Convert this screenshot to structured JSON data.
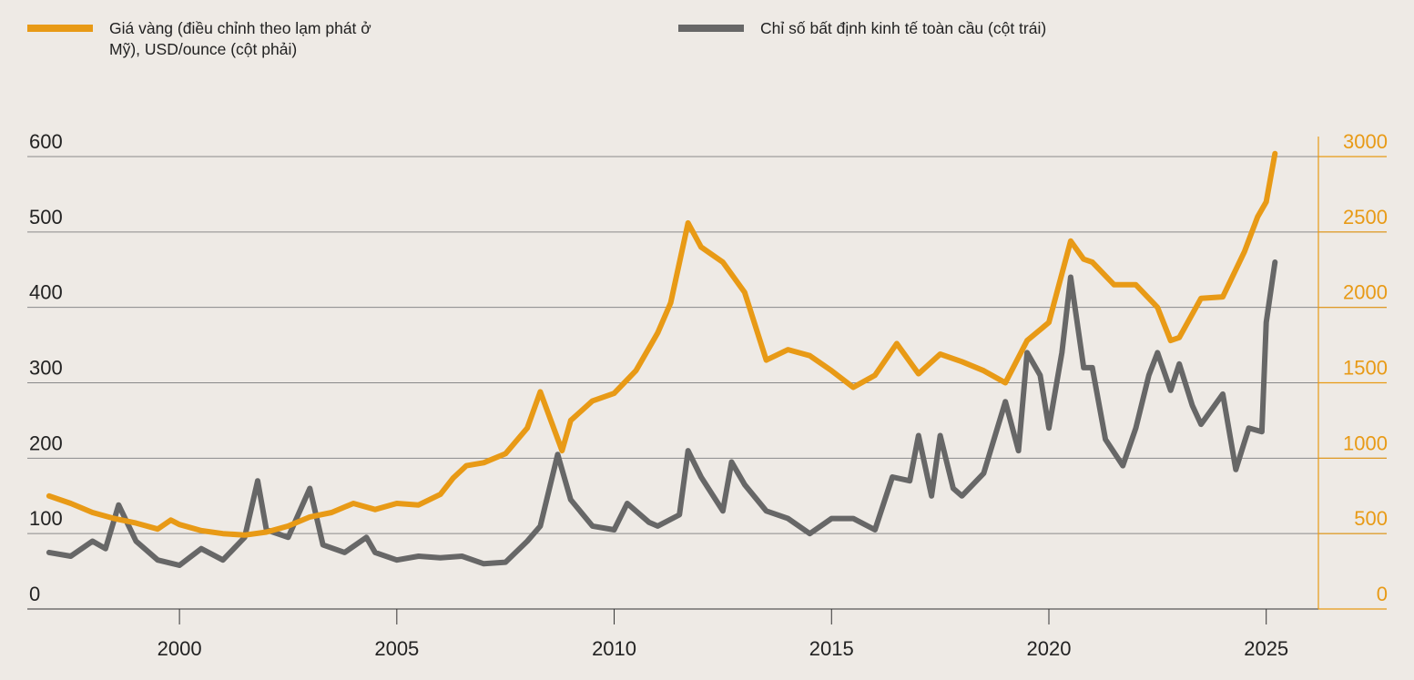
{
  "chart_data": {
    "type": "line",
    "title": "",
    "xlabel": "",
    "ylabel_left": "",
    "ylabel_right": "",
    "xlim": [
      1996.5,
      2026.2
    ],
    "x_ticks": [
      2000,
      2005,
      2010,
      2015,
      2020,
      2025
    ],
    "ylim_left": [
      0,
      600
    ],
    "yticks_left": [
      0,
      100,
      200,
      300,
      400,
      500,
      600
    ],
    "ylim_right": [
      0,
      3000
    ],
    "yticks_right": [
      0,
      500,
      1000,
      1500,
      2000,
      2500,
      3000
    ],
    "grid": "horizontal",
    "legend_position": "top",
    "series": [
      {
        "name": "Giá vàng (điều chỉnh theo lạm phát ở Mỹ), USD/ounce (cột phải)",
        "axis": "right",
        "color": "#e89a16",
        "points": [
          [
            1997.0,
            750
          ],
          [
            1997.5,
            700
          ],
          [
            1998.0,
            640
          ],
          [
            1998.5,
            600
          ],
          [
            1999.0,
            570
          ],
          [
            1999.5,
            530
          ],
          [
            1999.8,
            590
          ],
          [
            2000.0,
            560
          ],
          [
            2000.5,
            520
          ],
          [
            2001.0,
            500
          ],
          [
            2001.5,
            490
          ],
          [
            2002.0,
            510
          ],
          [
            2002.5,
            550
          ],
          [
            2003.0,
            610
          ],
          [
            2003.5,
            640
          ],
          [
            2004.0,
            700
          ],
          [
            2004.5,
            660
          ],
          [
            2005.0,
            700
          ],
          [
            2005.5,
            690
          ],
          [
            2006.0,
            760
          ],
          [
            2006.3,
            870
          ],
          [
            2006.6,
            950
          ],
          [
            2007.0,
            970
          ],
          [
            2007.5,
            1030
          ],
          [
            2008.0,
            1200
          ],
          [
            2008.3,
            1440
          ],
          [
            2008.8,
            1050
          ],
          [
            2009.0,
            1250
          ],
          [
            2009.5,
            1380
          ],
          [
            2010.0,
            1430
          ],
          [
            2010.5,
            1580
          ],
          [
            2011.0,
            1830
          ],
          [
            2011.3,
            2030
          ],
          [
            2011.7,
            2560
          ],
          [
            2012.0,
            2400
          ],
          [
            2012.5,
            2300
          ],
          [
            2013.0,
            2100
          ],
          [
            2013.5,
            1650
          ],
          [
            2014.0,
            1720
          ],
          [
            2014.5,
            1680
          ],
          [
            2015.0,
            1580
          ],
          [
            2015.5,
            1470
          ],
          [
            2016.0,
            1550
          ],
          [
            2016.5,
            1760
          ],
          [
            2017.0,
            1560
          ],
          [
            2017.5,
            1690
          ],
          [
            2018.0,
            1640
          ],
          [
            2018.5,
            1580
          ],
          [
            2019.0,
            1500
          ],
          [
            2019.5,
            1780
          ],
          [
            2020.0,
            1900
          ],
          [
            2020.5,
            2440
          ],
          [
            2020.8,
            2320
          ],
          [
            2021.0,
            2300
          ],
          [
            2021.5,
            2150
          ],
          [
            2022.0,
            2150
          ],
          [
            2022.5,
            2000
          ],
          [
            2022.8,
            1780
          ],
          [
            2023.0,
            1800
          ],
          [
            2023.5,
            2060
          ],
          [
            2024.0,
            2070
          ],
          [
            2024.5,
            2370
          ],
          [
            2024.8,
            2600
          ],
          [
            2025.0,
            2700
          ],
          [
            2025.2,
            3020
          ]
        ]
      },
      {
        "name": "Chỉ số bất định kinh tế toàn cầu (cột trái)",
        "axis": "left",
        "color": "#676767",
        "points": [
          [
            1997.0,
            75
          ],
          [
            1997.5,
            70
          ],
          [
            1998.0,
            90
          ],
          [
            1998.3,
            80
          ],
          [
            1998.6,
            138
          ],
          [
            1999.0,
            90
          ],
          [
            1999.5,
            65
          ],
          [
            2000.0,
            58
          ],
          [
            2000.5,
            80
          ],
          [
            2001.0,
            65
          ],
          [
            2001.5,
            95
          ],
          [
            2001.8,
            170
          ],
          [
            2002.0,
            105
          ],
          [
            2002.5,
            95
          ],
          [
            2003.0,
            160
          ],
          [
            2003.3,
            85
          ],
          [
            2003.8,
            75
          ],
          [
            2004.3,
            95
          ],
          [
            2004.5,
            75
          ],
          [
            2005.0,
            65
          ],
          [
            2005.5,
            70
          ],
          [
            2006.0,
            68
          ],
          [
            2006.5,
            70
          ],
          [
            2007.0,
            60
          ],
          [
            2007.5,
            62
          ],
          [
            2008.0,
            90
          ],
          [
            2008.3,
            110
          ],
          [
            2008.7,
            205
          ],
          [
            2009.0,
            145
          ],
          [
            2009.5,
            110
          ],
          [
            2010.0,
            105
          ],
          [
            2010.3,
            140
          ],
          [
            2010.8,
            115
          ],
          [
            2011.0,
            110
          ],
          [
            2011.5,
            125
          ],
          [
            2011.7,
            210
          ],
          [
            2012.0,
            175
          ],
          [
            2012.5,
            130
          ],
          [
            2012.7,
            195
          ],
          [
            2013.0,
            165
          ],
          [
            2013.5,
            130
          ],
          [
            2014.0,
            120
          ],
          [
            2014.5,
            100
          ],
          [
            2015.0,
            120
          ],
          [
            2015.5,
            120
          ],
          [
            2016.0,
            105
          ],
          [
            2016.4,
            175
          ],
          [
            2016.8,
            170
          ],
          [
            2017.0,
            230
          ],
          [
            2017.3,
            150
          ],
          [
            2017.5,
            230
          ],
          [
            2017.8,
            160
          ],
          [
            2018.0,
            150
          ],
          [
            2018.5,
            180
          ],
          [
            2019.0,
            275
          ],
          [
            2019.3,
            210
          ],
          [
            2019.5,
            340
          ],
          [
            2019.8,
            310
          ],
          [
            2020.0,
            240
          ],
          [
            2020.3,
            340
          ],
          [
            2020.5,
            440
          ],
          [
            2020.8,
            320
          ],
          [
            2021.0,
            320
          ],
          [
            2021.3,
            225
          ],
          [
            2021.7,
            190
          ],
          [
            2022.0,
            240
          ],
          [
            2022.3,
            310
          ],
          [
            2022.5,
            340
          ],
          [
            2022.8,
            290
          ],
          [
            2023.0,
            325
          ],
          [
            2023.3,
            270
          ],
          [
            2023.5,
            245
          ],
          [
            2024.0,
            285
          ],
          [
            2024.3,
            185
          ],
          [
            2024.6,
            240
          ],
          [
            2024.9,
            235
          ],
          [
            2025.0,
            380
          ],
          [
            2025.2,
            460
          ]
        ]
      }
    ]
  }
}
